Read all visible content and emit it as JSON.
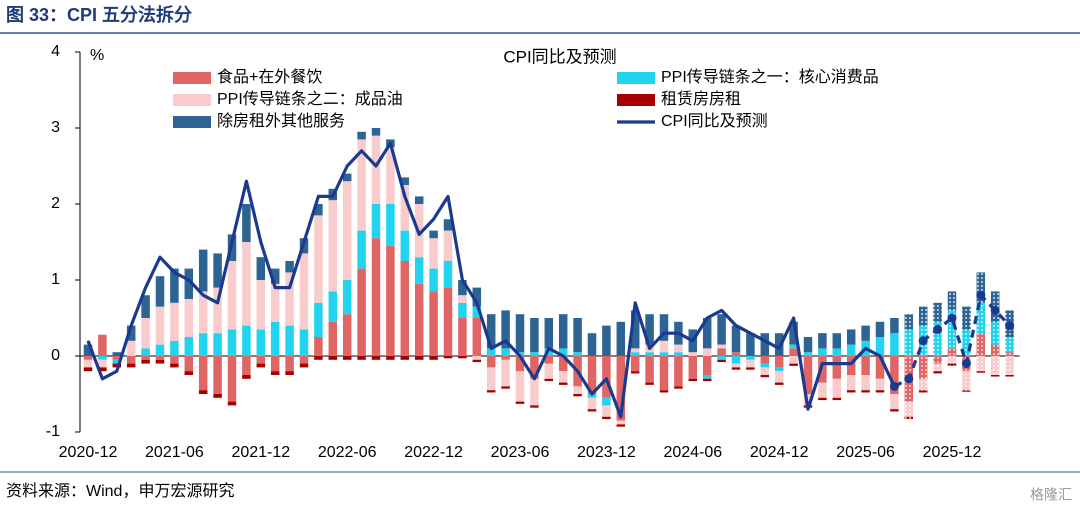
{
  "title": "图 33：CPI 五分法拆分",
  "source": "资料来源：Wind，申万宏源研究",
  "watermark": "格隆汇",
  "chart_data": {
    "type": "stacked_bar_line",
    "title": "CPI同比及预测",
    "y_unit": "%",
    "ylim": [
      -1,
      4
    ],
    "yticks": [
      -1,
      0,
      1,
      2,
      3,
      4
    ],
    "forecast_from_index": 57,
    "categories": [
      "2020-12",
      null,
      null,
      null,
      null,
      null,
      "2021-06",
      null,
      null,
      null,
      null,
      null,
      "2021-12",
      null,
      null,
      null,
      null,
      null,
      "2022-06",
      null,
      null,
      null,
      null,
      null,
      "2022-12",
      null,
      null,
      null,
      null,
      null,
      "2023-06",
      null,
      null,
      null,
      null,
      null,
      "2023-12",
      null,
      null,
      null,
      null,
      null,
      "2024-06",
      null,
      null,
      null,
      null,
      null,
      "2024-12",
      null,
      null,
      null,
      null,
      null,
      "2025-06",
      null,
      null,
      null,
      null,
      null,
      "2025-12",
      null,
      null,
      null,
      null
    ],
    "series": [
      {
        "name": "食品+在外餐饮",
        "color": "#e06666",
        "values": [
          -0.05,
          0.28,
          -0.05,
          -0.1,
          -0.05,
          -0.05,
          -0.1,
          -0.2,
          -0.45,
          -0.5,
          -0.6,
          -0.25,
          -0.1,
          -0.2,
          -0.2,
          -0.1,
          0.25,
          0.45,
          0.55,
          1.15,
          1.55,
          1.45,
          1.25,
          0.95,
          0.85,
          0.9,
          0.5,
          0.5,
          -0.15,
          -0.05,
          -0.2,
          -0.3,
          -0.1,
          -0.2,
          -0.4,
          -0.5,
          -0.55,
          -0.85,
          -0.2,
          -0.35,
          -0.45,
          -0.4,
          -0.3,
          -0.25,
          0.1,
          0.05,
          0.0,
          -0.1,
          -0.15,
          0.1,
          -0.5,
          -0.35,
          -0.3,
          -0.25,
          -0.25,
          -0.3,
          -0.5,
          -0.6,
          -0.3,
          -0.1,
          0.1,
          -0.2,
          0.3,
          0.15,
          0.05
        ]
      },
      {
        "name": "PPI传导链条之一：核心消费品",
        "color": "#22d3ee",
        "values": [
          0.0,
          -0.05,
          -0.05,
          0.0,
          0.1,
          0.15,
          0.2,
          0.25,
          0.3,
          0.3,
          0.35,
          0.4,
          0.35,
          0.45,
          0.4,
          0.35,
          0.45,
          0.4,
          0.45,
          0.5,
          0.45,
          0.55,
          0.4,
          0.35,
          0.3,
          0.35,
          0.2,
          0.15,
          0.1,
          0.1,
          0.05,
          0.05,
          0.1,
          0.1,
          0.05,
          -0.05,
          -0.1,
          0.0,
          0.05,
          0.05,
          0.05,
          0.05,
          0.0,
          -0.05,
          -0.05,
          -0.1,
          -0.05,
          -0.05,
          -0.05,
          0.05,
          0.05,
          0.1,
          0.1,
          0.15,
          0.2,
          0.25,
          0.3,
          0.35,
          0.4,
          0.45,
          0.5,
          0.35,
          0.4,
          0.3,
          0.2
        ]
      },
      {
        "name": "PPI传导链条之二：成品油",
        "color": "#f8cccc",
        "values": [
          -0.1,
          -0.1,
          0.0,
          0.2,
          0.4,
          0.5,
          0.5,
          0.5,
          0.55,
          0.6,
          0.9,
          1.1,
          0.65,
          0.5,
          0.7,
          1.0,
          1.15,
          1.2,
          1.3,
          1.2,
          0.9,
          0.75,
          0.6,
          0.7,
          0.4,
          0.4,
          0.1,
          -0.05,
          -0.3,
          -0.35,
          -0.4,
          -0.35,
          -0.2,
          -0.15,
          -0.1,
          -0.15,
          -0.15,
          -0.05,
          0.05,
          0.1,
          0.15,
          0.1,
          0.05,
          0.1,
          0.05,
          -0.05,
          -0.1,
          -0.1,
          -0.15,
          -0.1,
          -0.15,
          -0.2,
          -0.25,
          -0.2,
          -0.2,
          -0.15,
          -0.2,
          -0.2,
          -0.15,
          -0.1,
          -0.1,
          -0.25,
          -0.2,
          -0.25,
          -0.25
        ]
      },
      {
        "name": "租赁房房租",
        "color": "#a50000",
        "values": [
          -0.05,
          -0.05,
          -0.05,
          -0.05,
          -0.05,
          -0.05,
          -0.05,
          -0.05,
          -0.05,
          -0.05,
          -0.05,
          -0.05,
          -0.05,
          -0.05,
          -0.05,
          -0.05,
          -0.05,
          -0.05,
          -0.05,
          -0.05,
          -0.05,
          -0.05,
          -0.05,
          -0.05,
          -0.05,
          -0.03,
          -0.03,
          -0.03,
          -0.03,
          -0.03,
          -0.03,
          -0.03,
          -0.03,
          -0.03,
          -0.03,
          -0.03,
          -0.03,
          -0.03,
          -0.03,
          -0.03,
          -0.03,
          -0.03,
          -0.03,
          -0.03,
          -0.03,
          -0.03,
          -0.03,
          -0.03,
          -0.03,
          -0.03,
          -0.03,
          -0.03,
          -0.03,
          -0.03,
          -0.03,
          -0.03,
          -0.03,
          -0.03,
          -0.03,
          -0.03,
          -0.03,
          -0.02,
          -0.02,
          -0.02,
          -0.02
        ]
      },
      {
        "name": "除房租外其他服务",
        "color": "#2e6494",
        "values": [
          0.15,
          0.0,
          0.05,
          0.2,
          0.3,
          0.4,
          0.45,
          0.4,
          0.55,
          0.45,
          0.35,
          0.5,
          0.3,
          0.2,
          0.15,
          0.2,
          0.15,
          0.15,
          0.1,
          0.1,
          0.1,
          0.1,
          0.1,
          0.1,
          0.1,
          0.15,
          0.2,
          0.25,
          0.45,
          0.5,
          0.5,
          0.45,
          0.4,
          0.45,
          0.45,
          0.3,
          0.4,
          0.45,
          0.5,
          0.4,
          0.35,
          0.3,
          0.3,
          0.4,
          0.4,
          0.35,
          0.3,
          0.3,
          0.3,
          0.3,
          0.2,
          0.2,
          0.2,
          0.2,
          0.2,
          0.2,
          0.2,
          0.2,
          0.25,
          0.25,
          0.25,
          0.3,
          0.4,
          0.4,
          0.35
        ]
      },
      {
        "name": "CPI同比及预测",
        "color": "#1a3a8f",
        "kind": "line",
        "values": [
          0.2,
          -0.3,
          -0.2,
          0.4,
          0.9,
          1.3,
          1.1,
          1.0,
          0.8,
          0.7,
          1.5,
          2.3,
          1.5,
          0.9,
          0.9,
          1.5,
          2.1,
          2.1,
          2.5,
          2.7,
          2.5,
          2.8,
          2.1,
          1.6,
          1.8,
          2.1,
          1.0,
          0.7,
          0.1,
          0.2,
          0.0,
          -0.3,
          0.1,
          0.0,
          -0.2,
          -0.5,
          -0.3,
          -0.8,
          0.7,
          0.1,
          0.3,
          0.3,
          0.2,
          0.5,
          0.6,
          0.4,
          0.3,
          0.2,
          0.1,
          0.5,
          -0.7,
          -0.1,
          -0.1,
          -0.1,
          0.1,
          0.0,
          -0.4,
          -0.3,
          0.2,
          0.35,
          0.5,
          -0.1,
          0.8,
          0.6,
          0.4
        ]
      }
    ]
  }
}
